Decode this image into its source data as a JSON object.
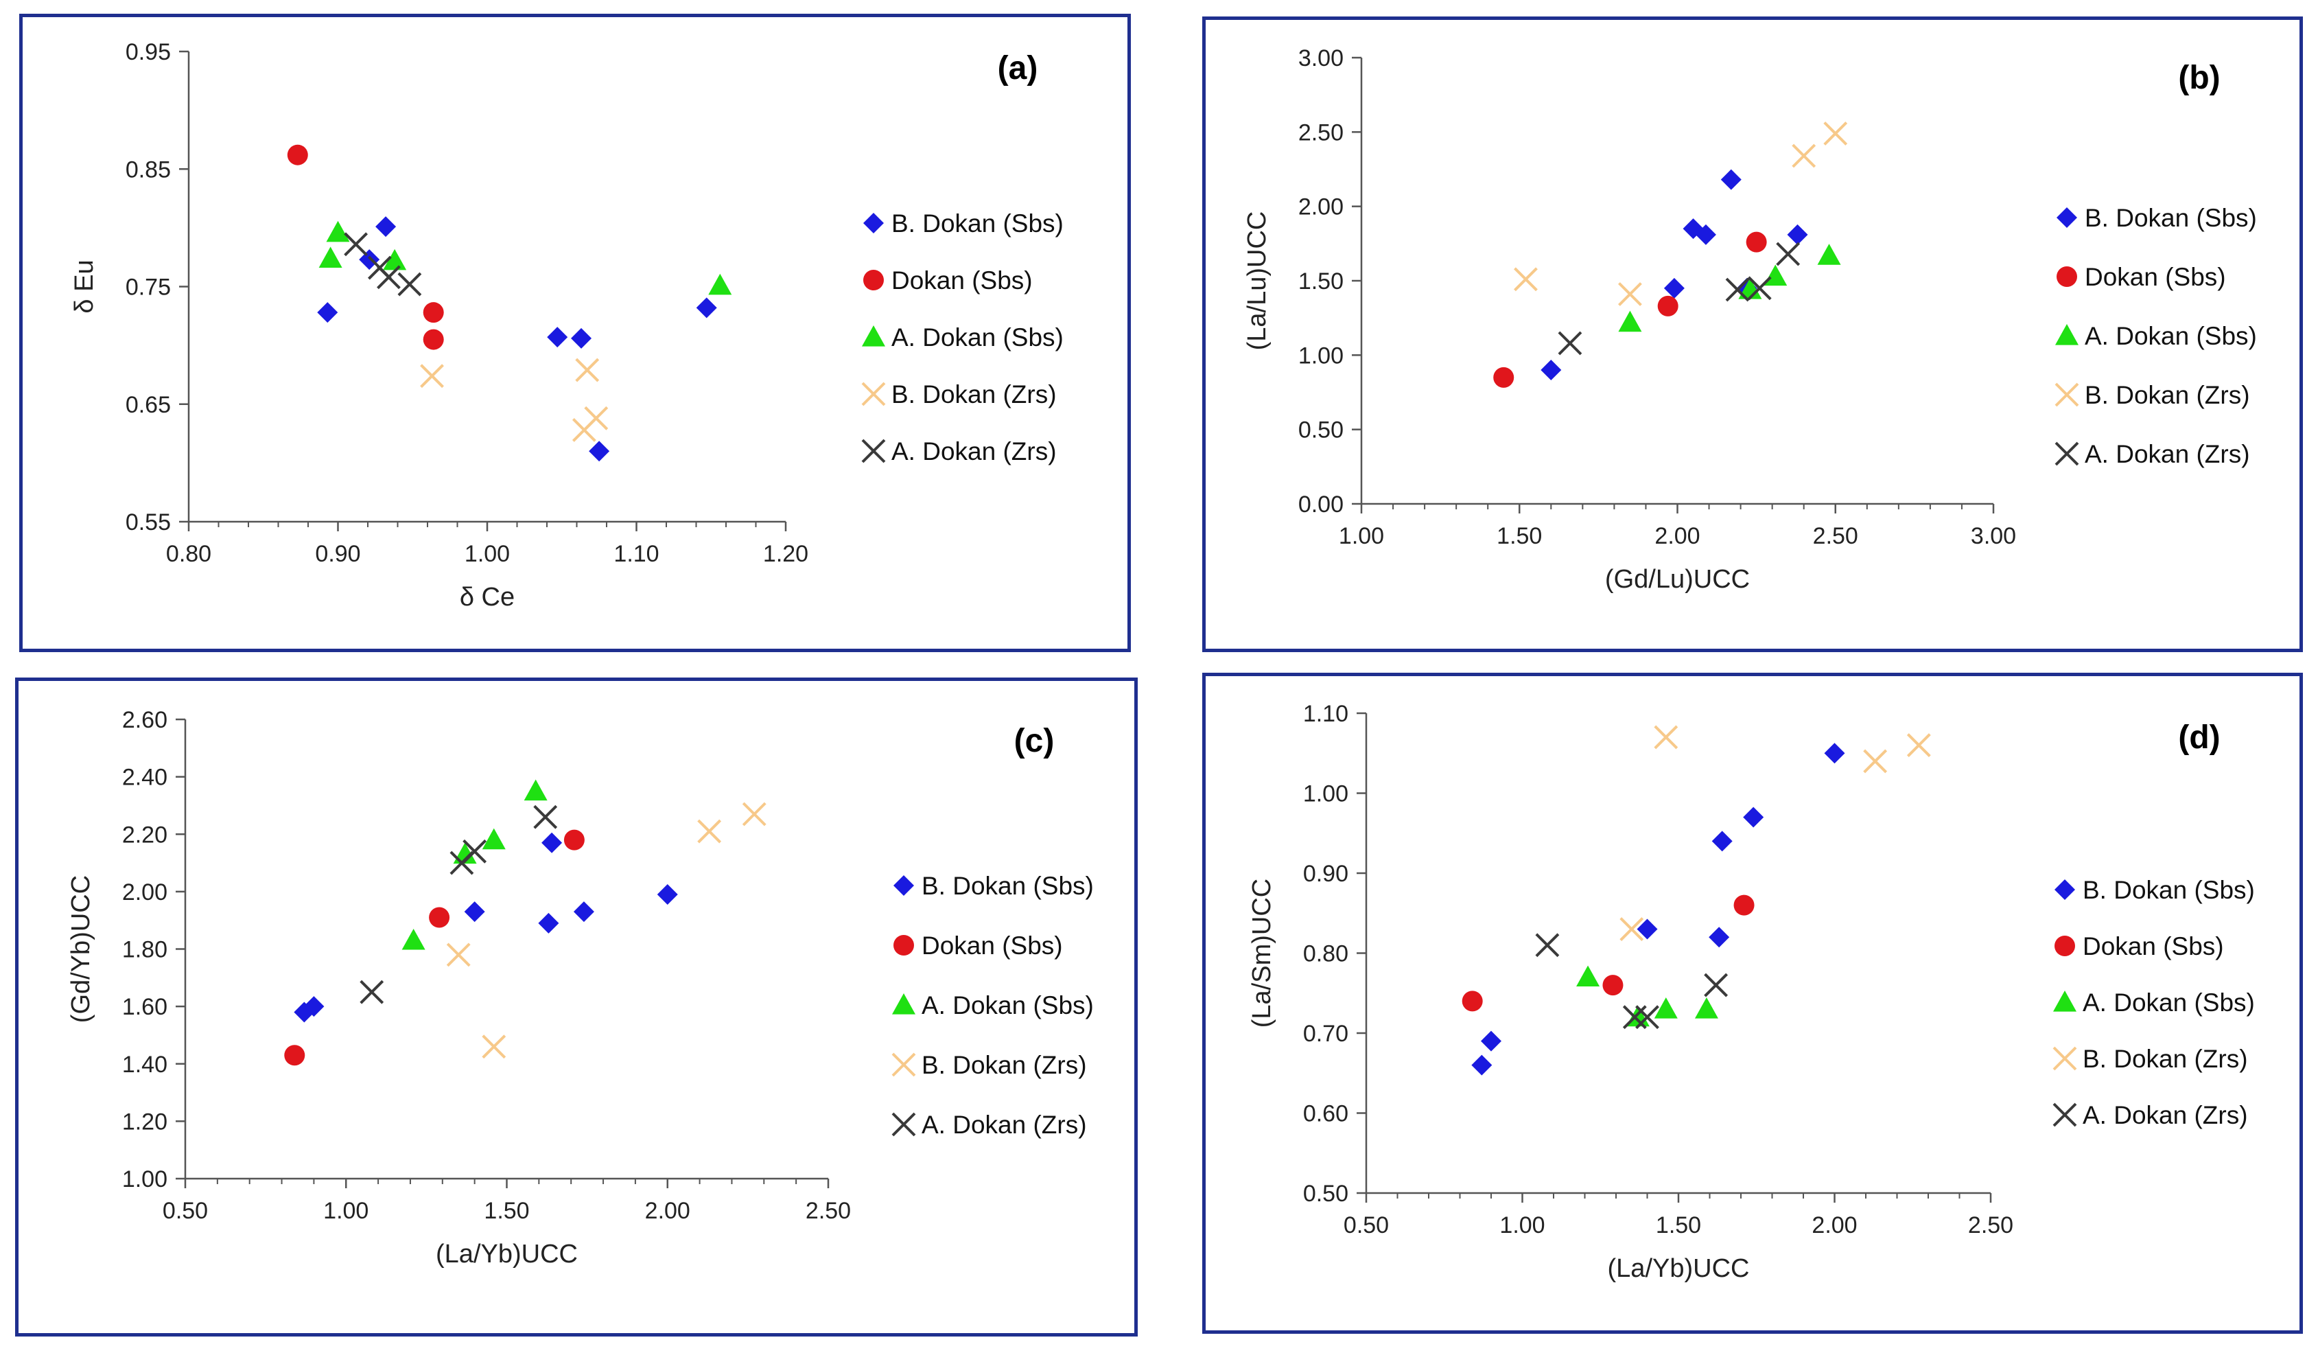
{
  "series_styles": [
    {
      "name": "B. Dokan  (Sbs)",
      "marker": "diamond",
      "color": "#1a1adf"
    },
    {
      "name": "Dokan (Sbs)",
      "marker": "circle",
      "color": "#e0161c"
    },
    {
      "name": "A. Dokan (Sbs)",
      "marker": "triangle",
      "color": "#1fe012"
    },
    {
      "name": "B. Dokan (Zrs)",
      "marker": "x",
      "color": "#f7c98a"
    },
    {
      "name": "A. Dokan (Zrs)",
      "marker": "x",
      "color": "#3a3a3a"
    }
  ],
  "chart_data": [
    {
      "id": "a",
      "type": "scatter",
      "panel_label": "(a)",
      "xlabel": "δ Ce",
      "ylabel": "δ Eu",
      "xlim": [
        0.8,
        1.2
      ],
      "ylim": [
        0.55,
        0.95
      ],
      "xticks": [
        "0.80",
        "0.90",
        "1.00",
        "1.10",
        "1.20"
      ],
      "yticks": [
        "0.55",
        "0.65",
        "0.75",
        "0.85",
        "0.95"
      ],
      "legend": [
        "B. Dokan  (Sbs)",
        "Dokan (Sbs)",
        "A. Dokan (Sbs)",
        "B. Dokan (Zrs)",
        "A. Dokan (Zrs)"
      ],
      "series": [
        {
          "name": "B. Dokan  (Sbs)",
          "points": [
            [
              0.893,
              0.728
            ],
            [
              0.921,
              0.773
            ],
            [
              0.932,
              0.801
            ],
            [
              1.047,
              0.707
            ],
            [
              1.063,
              0.706
            ],
            [
              1.075,
              0.61
            ],
            [
              1.147,
              0.732
            ]
          ]
        },
        {
          "name": "Dokan (Sbs)",
          "points": [
            [
              0.873,
              0.862
            ],
            [
              0.964,
              0.728
            ],
            [
              0.964,
              0.705
            ]
          ]
        },
        {
          "name": "A. Dokan (Sbs)",
          "points": [
            [
              0.9,
              0.796
            ],
            [
              0.895,
              0.774
            ],
            [
              0.938,
              0.772
            ],
            [
              1.156,
              0.751
            ]
          ]
        },
        {
          "name": "B. Dokan (Zrs)",
          "points": [
            [
              0.963,
              0.674
            ],
            [
              1.067,
              0.679
            ],
            [
              1.073,
              0.638
            ],
            [
              1.065,
              0.628
            ]
          ]
        },
        {
          "name": "A. Dokan (Zrs)",
          "points": [
            [
              0.912,
              0.786
            ],
            [
              0.934,
              0.758
            ],
            [
              0.948,
              0.752
            ],
            [
              0.928,
              0.766
            ]
          ]
        }
      ]
    },
    {
      "id": "b",
      "type": "scatter",
      "panel_label": "(b)",
      "xlabel": "(Gd/Lu)UCC",
      "ylabel": "(La/Lu)UCC",
      "xlim": [
        1.0,
        3.0
      ],
      "ylim": [
        0.0,
        3.0
      ],
      "xticks": [
        "1.00",
        "1.50",
        "2.00",
        "2.50",
        "3.00"
      ],
      "yticks": [
        "0.00",
        "0.50",
        "1.00",
        "1.50",
        "2.00",
        "2.50",
        "3.00"
      ],
      "legend": [
        "B. Dokan  (Sbs)",
        "Dokan (Sbs)",
        "A. Dokan (Sbs)",
        "B. Dokan (Zrs)",
        "A. Dokan (Zrs)"
      ],
      "series": [
        {
          "name": "B. Dokan  (Sbs)",
          "points": [
            [
              1.6,
              0.9
            ],
            [
              1.99,
              1.45
            ],
            [
              2.05,
              1.85
            ],
            [
              2.09,
              1.81
            ],
            [
              2.17,
              2.18
            ],
            [
              2.22,
              1.45
            ],
            [
              2.38,
              1.81
            ]
          ]
        },
        {
          "name": "Dokan (Sbs)",
          "points": [
            [
              1.45,
              0.85
            ],
            [
              1.97,
              1.33
            ],
            [
              2.25,
              1.76
            ]
          ]
        },
        {
          "name": "A. Dokan (Sbs)",
          "points": [
            [
              1.85,
              1.22
            ],
            [
              2.23,
              1.44
            ],
            [
              2.31,
              1.53
            ],
            [
              2.48,
              1.67
            ]
          ]
        },
        {
          "name": "B. Dokan (Zrs)",
          "points": [
            [
              1.52,
              1.51
            ],
            [
              1.85,
              1.41
            ],
            [
              2.4,
              2.34
            ],
            [
              2.5,
              2.49
            ]
          ]
        },
        {
          "name": "A. Dokan (Zrs)",
          "points": [
            [
              1.66,
              1.08
            ],
            [
              2.19,
              1.44
            ],
            [
              2.26,
              1.45
            ],
            [
              2.35,
              1.68
            ]
          ]
        }
      ]
    },
    {
      "id": "c",
      "type": "scatter",
      "panel_label": "(c)",
      "xlabel": "(La/Yb)UCC",
      "ylabel": "(Gd/Yb)UCC",
      "xlim": [
        0.5,
        2.5
      ],
      "ylim": [
        1.0,
        2.6
      ],
      "xticks": [
        "0.50",
        "1.00",
        "1.50",
        "2.00",
        "2.50"
      ],
      "yticks": [
        "1.00",
        "1.20",
        "1.40",
        "1.60",
        "1.80",
        "2.00",
        "2.20",
        "2.40",
        "2.60"
      ],
      "legend": [
        "B. Dokan  (Sbs)",
        "Dokan (Sbs)",
        "A. Dokan (Sbs)",
        "B. Dokan (Zrs)",
        "A. Dokan (Zrs)"
      ],
      "series": [
        {
          "name": "B. Dokan  (Sbs)",
          "points": [
            [
              0.87,
              1.58
            ],
            [
              0.9,
              1.6
            ],
            [
              1.4,
              1.93
            ],
            [
              1.63,
              1.89
            ],
            [
              1.64,
              2.17
            ],
            [
              1.74,
              1.93
            ],
            [
              2.0,
              1.99
            ]
          ]
        },
        {
          "name": "Dokan (Sbs)",
          "points": [
            [
              0.84,
              1.43
            ],
            [
              1.29,
              1.91
            ],
            [
              1.71,
              2.18
            ]
          ]
        },
        {
          "name": "A. Dokan (Sbs)",
          "points": [
            [
              1.21,
              1.83
            ],
            [
              1.37,
              2.13
            ],
            [
              1.46,
              2.18
            ],
            [
              1.59,
              2.35
            ]
          ]
        },
        {
          "name": "B. Dokan (Zrs)",
          "points": [
            [
              1.35,
              1.78
            ],
            [
              1.46,
              1.46
            ],
            [
              2.13,
              2.21
            ],
            [
              2.27,
              2.27
            ]
          ]
        },
        {
          "name": "A. Dokan (Zrs)",
          "points": [
            [
              1.08,
              1.65
            ],
            [
              1.36,
              2.1
            ],
            [
              1.4,
              2.14
            ],
            [
              1.62,
              2.26
            ]
          ]
        }
      ]
    },
    {
      "id": "d",
      "type": "scatter",
      "panel_label": "(d)",
      "xlabel": "(La/Yb)UCC",
      "ylabel": "(La/Sm)UCC",
      "xlim": [
        0.5,
        2.5
      ],
      "ylim": [
        0.5,
        1.1
      ],
      "xticks": [
        "0.50",
        "1.00",
        "1.50",
        "2.00",
        "2.50"
      ],
      "yticks": [
        "0.50",
        "0.60",
        "0.70",
        "0.80",
        "0.90",
        "1.00",
        "1.10"
      ],
      "legend": [
        "B. Dokan  (Sbs)",
        "Dokan (Sbs)",
        "A. Dokan (Sbs)",
        "B. Dokan (Zrs)",
        "A. Dokan (Zrs)"
      ],
      "series": [
        {
          "name": "B. Dokan  (Sbs)",
          "points": [
            [
              0.87,
              0.66
            ],
            [
              0.9,
              0.69
            ],
            [
              1.4,
              0.83
            ],
            [
              1.63,
              0.82
            ],
            [
              1.64,
              0.94
            ],
            [
              1.74,
              0.97
            ],
            [
              2.0,
              1.05
            ]
          ]
        },
        {
          "name": "Dokan (Sbs)",
          "points": [
            [
              0.84,
              0.74
            ],
            [
              1.29,
              0.76
            ],
            [
              1.71,
              0.86
            ]
          ]
        },
        {
          "name": "A. Dokan (Sbs)",
          "points": [
            [
              1.21,
              0.77
            ],
            [
              1.37,
              0.72
            ],
            [
              1.46,
              0.73
            ],
            [
              1.59,
              0.73
            ]
          ]
        },
        {
          "name": "B. Dokan (Zrs)",
          "points": [
            [
              1.35,
              0.83
            ],
            [
              1.46,
              1.07
            ],
            [
              2.13,
              1.04
            ],
            [
              2.27,
              1.06
            ]
          ]
        },
        {
          "name": "A. Dokan (Zrs)",
          "points": [
            [
              1.08,
              0.81
            ],
            [
              1.36,
              0.72
            ],
            [
              1.4,
              0.72
            ],
            [
              1.62,
              0.76
            ]
          ]
        }
      ]
    }
  ]
}
